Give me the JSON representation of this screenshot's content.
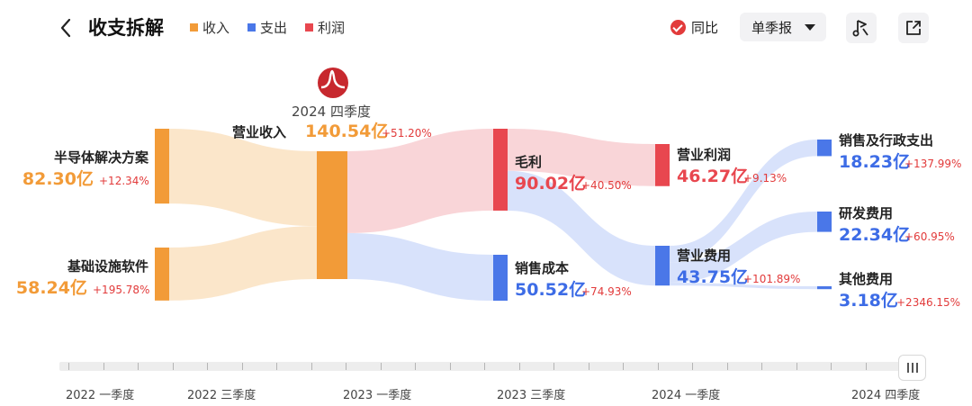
{
  "header": {
    "title": "收支拆解",
    "legend": [
      {
        "label": "收入",
        "color": "#f29b38"
      },
      {
        "label": "支出",
        "color": "#4a77e8"
      },
      {
        "label": "利润",
        "color": "#e8474f"
      }
    ],
    "yoy_label": "同比",
    "period_label": "单季报"
  },
  "chart_data": {
    "type": "sankey",
    "period": "2024 四季度",
    "nodes": [
      {
        "id": "semi",
        "name": "半导体解决方案",
        "value": "82.30亿",
        "yoy": "+12.34%",
        "kind": "income"
      },
      {
        "id": "infra",
        "name": "基础设施软件",
        "value": "58.24亿",
        "yoy": "+195.78%",
        "kind": "income"
      },
      {
        "id": "revenue",
        "name": "营业收入",
        "value": "140.54亿",
        "yoy": "+51.20%",
        "kind": "income"
      },
      {
        "id": "gross",
        "name": "毛利",
        "value": "90.02亿",
        "yoy": "+40.50%",
        "kind": "profit"
      },
      {
        "id": "cogs",
        "name": "销售成本",
        "value": "50.52亿",
        "yoy": "+74.93%",
        "kind": "expense"
      },
      {
        "id": "opprofit",
        "name": "营业利润",
        "value": "46.27亿",
        "yoy": "+9.13%",
        "kind": "profit"
      },
      {
        "id": "opex",
        "name": "营业费用",
        "value": "43.75亿",
        "yoy": "+101.89%",
        "kind": "expense"
      },
      {
        "id": "sga",
        "name": "销售及行政支出",
        "value": "18.23亿",
        "yoy": "+137.99%",
        "kind": "expense"
      },
      {
        "id": "rd",
        "name": "研发费用",
        "value": "22.34亿",
        "yoy": "+60.95%",
        "kind": "expense"
      },
      {
        "id": "other",
        "name": "其他费用",
        "value": "3.18亿",
        "yoy": "+2346.15%",
        "kind": "expense"
      }
    ],
    "links": [
      {
        "source": "semi",
        "target": "revenue",
        "value": 82.3
      },
      {
        "source": "infra",
        "target": "revenue",
        "value": 58.24
      },
      {
        "source": "revenue",
        "target": "gross",
        "value": 90.02
      },
      {
        "source": "revenue",
        "target": "cogs",
        "value": 50.52
      },
      {
        "source": "gross",
        "target": "opprofit",
        "value": 46.27
      },
      {
        "source": "gross",
        "target": "opex",
        "value": 43.75
      },
      {
        "source": "opex",
        "target": "sga",
        "value": 18.23
      },
      {
        "source": "opex",
        "target": "rd",
        "value": 22.34
      },
      {
        "source": "opex",
        "target": "other",
        "value": 3.18
      }
    ],
    "colors": {
      "income": "#f29b38",
      "expense": "#4a77e8",
      "profit": "#e8474f",
      "value_income": "#f29b38",
      "value_expense": "#3d6ce6",
      "value_profit": "#e8474f"
    }
  },
  "timeline": {
    "labels": [
      "2022 一季度",
      "2022 三季度",
      "2023 一季度",
      "2023 三季度",
      "2024 一季度",
      "2024 四季度"
    ]
  }
}
